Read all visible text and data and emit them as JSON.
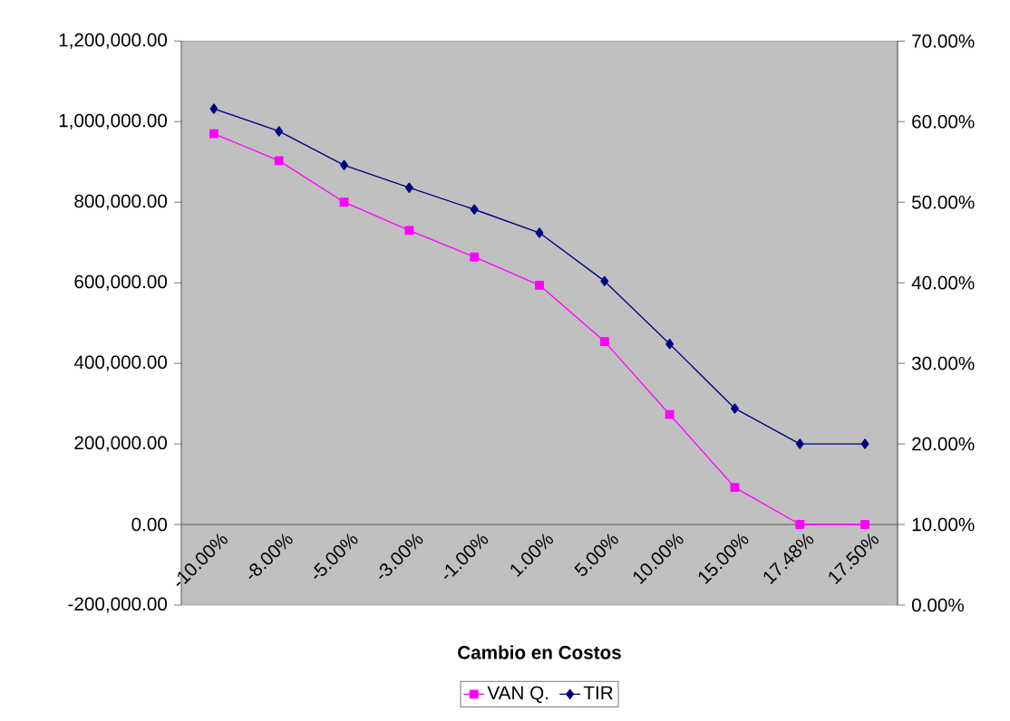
{
  "chart_data": {
    "type": "line",
    "xlabel": "Cambio en Costos",
    "categories": [
      "-10.00%",
      "-8.00%",
      "-5.00%",
      "-3.00%",
      "-1.00%",
      "1.00%",
      "5.00%",
      "10.00%",
      "15.00%",
      "17.48%",
      "17.50%"
    ],
    "series": [
      {
        "name": "VAN  Q.",
        "color": "#ff00ff",
        "marker": "square",
        "values": [
          970000,
          903000,
          800000,
          730000,
          664000,
          594000,
          454000,
          273000,
          92000,
          0,
          0
        ]
      },
      {
        "name": "TIR",
        "color": "#000080",
        "marker": "diamond",
        "axis": "y2",
        "values": [
          61.6,
          58.8,
          54.6,
          51.8,
          49.1,
          46.2,
          40.2,
          32.4,
          24.4,
          20,
          20
        ]
      }
    ],
    "ylim": [
      -200000,
      1200000
    ],
    "yticks": [
      {
        "value": -200000,
        "label": "-200,000.00"
      },
      {
        "value": 0,
        "label": "0.00"
      },
      {
        "value": 200000,
        "label": "200,000.00"
      },
      {
        "value": 400000,
        "label": "400,000.00"
      },
      {
        "value": 600000,
        "label": "600,000.00"
      },
      {
        "value": 800000,
        "label": "800,000.00"
      },
      {
        "value": 1000000,
        "label": "1,000,000.00"
      },
      {
        "value": 1200000,
        "label": "1,200,000.00"
      }
    ],
    "y2lim": [
      0,
      70
    ],
    "y2ticks": [
      {
        "value": 0,
        "label": "0.00%"
      },
      {
        "value": 10,
        "label": "10.00%"
      },
      {
        "value": 20,
        "label": "20.00%"
      },
      {
        "value": 30,
        "label": "30.00%"
      },
      {
        "value": 40,
        "label": "40.00%"
      },
      {
        "value": 50,
        "label": "50.00%"
      },
      {
        "value": 60,
        "label": "60.00%"
      },
      {
        "value": 70,
        "label": "70.00%"
      }
    ],
    "grid": false,
    "legend": "bottom"
  }
}
